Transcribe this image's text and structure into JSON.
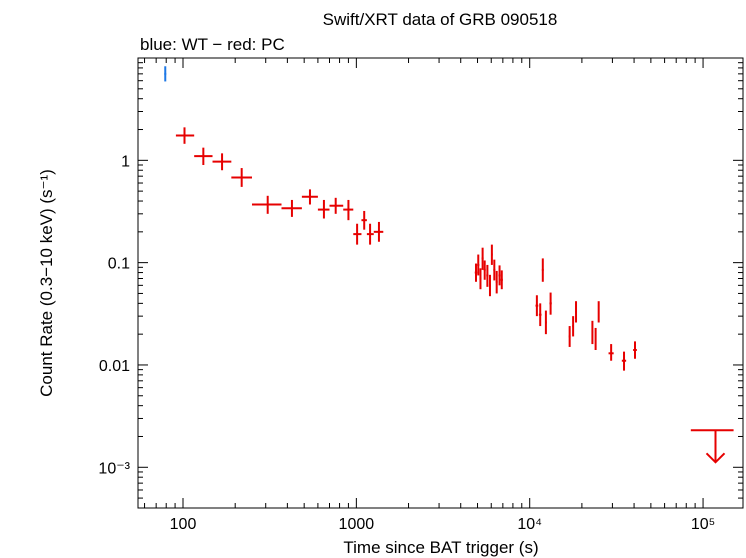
{
  "chart_data": {
    "type": "scatter",
    "title": "Swift/XRT data of GRB 090518",
    "subtitle": "blue: WT − red: PC",
    "xlabel": "Time since BAT trigger (s)",
    "ylabel": "Count Rate (0.3−10 keV) (s⁻¹)",
    "x_scale": "log",
    "y_scale": "log",
    "xlim": [
      55,
      170000
    ],
    "ylim": [
      0.0004,
      10
    ],
    "grid": false,
    "x_ticks": [
      {
        "value": 100,
        "label": "100"
      },
      {
        "value": 1000,
        "label": "1000"
      },
      {
        "value": 10000,
        "label": "10⁴"
      },
      {
        "value": 100000,
        "label": "10⁵"
      }
    ],
    "y_ticks": [
      {
        "value": 0.001,
        "label": "10⁻³"
      },
      {
        "value": 0.01,
        "label": "0.01"
      },
      {
        "value": 0.1,
        "label": "0.1"
      },
      {
        "value": 1,
        "label": "1"
      }
    ],
    "series": [
      {
        "name": "WT",
        "color": "#1e78e6",
        "points": [
          {
            "x": 79,
            "xlo": 78,
            "xhi": 80,
            "y": 7.0,
            "ylo": 5.9,
            "yhi": 8.3
          }
        ]
      },
      {
        "name": "PC",
        "color": "#e60000",
        "points": [
          {
            "x": 102,
            "xlo": 91,
            "xhi": 116,
            "y": 1.75,
            "ylo": 1.45,
            "yhi": 2.1
          },
          {
            "x": 131,
            "xlo": 116,
            "xhi": 148,
            "y": 1.1,
            "ylo": 0.9,
            "yhi": 1.33
          },
          {
            "x": 168,
            "xlo": 148,
            "xhi": 190,
            "y": 0.97,
            "ylo": 0.8,
            "yhi": 1.17
          },
          {
            "x": 218,
            "xlo": 190,
            "xhi": 250,
            "y": 0.68,
            "ylo": 0.55,
            "yhi": 0.84
          },
          {
            "x": 308,
            "xlo": 250,
            "xhi": 370,
            "y": 0.37,
            "ylo": 0.3,
            "yhi": 0.45
          },
          {
            "x": 425,
            "xlo": 370,
            "xhi": 485,
            "y": 0.34,
            "ylo": 0.28,
            "yhi": 0.41
          },
          {
            "x": 540,
            "xlo": 485,
            "xhi": 600,
            "y": 0.44,
            "ylo": 0.37,
            "yhi": 0.52
          },
          {
            "x": 650,
            "xlo": 600,
            "xhi": 700,
            "y": 0.33,
            "ylo": 0.27,
            "yhi": 0.41
          },
          {
            "x": 760,
            "xlo": 700,
            "xhi": 840,
            "y": 0.36,
            "ylo": 0.3,
            "yhi": 0.43
          },
          {
            "x": 900,
            "xlo": 840,
            "xhi": 960,
            "y": 0.33,
            "ylo": 0.26,
            "yhi": 0.41
          },
          {
            "x": 1010,
            "xlo": 960,
            "xhi": 1070,
            "y": 0.19,
            "ylo": 0.15,
            "yhi": 0.24
          },
          {
            "x": 1110,
            "xlo": 1070,
            "xhi": 1150,
            "y": 0.26,
            "ylo": 0.21,
            "yhi": 0.32
          },
          {
            "x": 1200,
            "xlo": 1150,
            "xhi": 1260,
            "y": 0.19,
            "ylo": 0.15,
            "yhi": 0.24
          },
          {
            "x": 1350,
            "xlo": 1260,
            "xhi": 1430,
            "y": 0.2,
            "ylo": 0.16,
            "yhi": 0.25
          },
          {
            "x": 4900,
            "xlo": 4820,
            "xhi": 4980,
            "y": 0.08,
            "ylo": 0.065,
            "yhi": 0.098
          },
          {
            "x": 5050,
            "xlo": 4980,
            "xhi": 5120,
            "y": 0.095,
            "ylo": 0.075,
            "yhi": 0.12
          },
          {
            "x": 5200,
            "xlo": 5130,
            "xhi": 5270,
            "y": 0.07,
            "ylo": 0.055,
            "yhi": 0.088
          },
          {
            "x": 5350,
            "xlo": 5280,
            "xhi": 5420,
            "y": 0.11,
            "ylo": 0.085,
            "yhi": 0.14
          },
          {
            "x": 5500,
            "xlo": 5430,
            "xhi": 5570,
            "y": 0.085,
            "ylo": 0.068,
            "yhi": 0.105
          },
          {
            "x": 5700,
            "xlo": 5620,
            "xhi": 5780,
            "y": 0.075,
            "ylo": 0.058,
            "yhi": 0.095
          },
          {
            "x": 5900,
            "xlo": 5820,
            "xhi": 5980,
            "y": 0.06,
            "ylo": 0.047,
            "yhi": 0.076
          },
          {
            "x": 6050,
            "xlo": 5980,
            "xhi": 6120,
            "y": 0.12,
            "ylo": 0.095,
            "yhi": 0.15
          },
          {
            "x": 6250,
            "xlo": 6170,
            "xhi": 6330,
            "y": 0.085,
            "ylo": 0.067,
            "yhi": 0.107
          },
          {
            "x": 6450,
            "xlo": 6370,
            "xhi": 6530,
            "y": 0.065,
            "ylo": 0.05,
            "yhi": 0.083
          },
          {
            "x": 6700,
            "xlo": 6600,
            "xhi": 6800,
            "y": 0.075,
            "ylo": 0.06,
            "yhi": 0.094
          },
          {
            "x": 6900,
            "xlo": 6800,
            "xhi": 7000,
            "y": 0.068,
            "ylo": 0.055,
            "yhi": 0.084
          },
          {
            "x": 11000,
            "xlo": 10800,
            "xhi": 11200,
            "y": 0.038,
            "ylo": 0.03,
            "yhi": 0.048
          },
          {
            "x": 11500,
            "xlo": 11300,
            "xhi": 11700,
            "y": 0.031,
            "ylo": 0.024,
            "yhi": 0.04
          },
          {
            "x": 11900,
            "xlo": 11750,
            "xhi": 12050,
            "y": 0.085,
            "ylo": 0.065,
            "yhi": 0.11
          },
          {
            "x": 12400,
            "xlo": 12250,
            "xhi": 12550,
            "y": 0.026,
            "ylo": 0.02,
            "yhi": 0.034
          },
          {
            "x": 13200,
            "xlo": 13000,
            "xhi": 13400,
            "y": 0.04,
            "ylo": 0.031,
            "yhi": 0.051
          },
          {
            "x": 17000,
            "xlo": 16800,
            "xhi": 17200,
            "y": 0.019,
            "ylo": 0.015,
            "yhi": 0.024
          },
          {
            "x": 17800,
            "xlo": 17600,
            "xhi": 18000,
            "y": 0.024,
            "ylo": 0.019,
            "yhi": 0.03
          },
          {
            "x": 18500,
            "xlo": 18300,
            "xhi": 18700,
            "y": 0.033,
            "ylo": 0.026,
            "yhi": 0.042
          },
          {
            "x": 23000,
            "xlo": 22800,
            "xhi": 23200,
            "y": 0.021,
            "ylo": 0.016,
            "yhi": 0.027
          },
          {
            "x": 24000,
            "xlo": 23800,
            "xhi": 24200,
            "y": 0.018,
            "ylo": 0.014,
            "yhi": 0.023
          },
          {
            "x": 25000,
            "xlo": 24800,
            "xhi": 25200,
            "y": 0.033,
            "ylo": 0.026,
            "yhi": 0.042
          },
          {
            "x": 29500,
            "xlo": 28500,
            "xhi": 30500,
            "y": 0.013,
            "ylo": 0.011,
            "yhi": 0.016
          },
          {
            "x": 35000,
            "xlo": 34000,
            "xhi": 36000,
            "y": 0.011,
            "ylo": 0.0088,
            "yhi": 0.0135
          },
          {
            "x": 40500,
            "xlo": 39500,
            "xhi": 41500,
            "y": 0.014,
            "ylo": 0.0115,
            "yhi": 0.017
          }
        ],
        "upper_limits": [
          {
            "x": 118000,
            "xlo": 85000,
            "xhi": 150000,
            "y": 0.0023
          }
        ]
      }
    ]
  }
}
